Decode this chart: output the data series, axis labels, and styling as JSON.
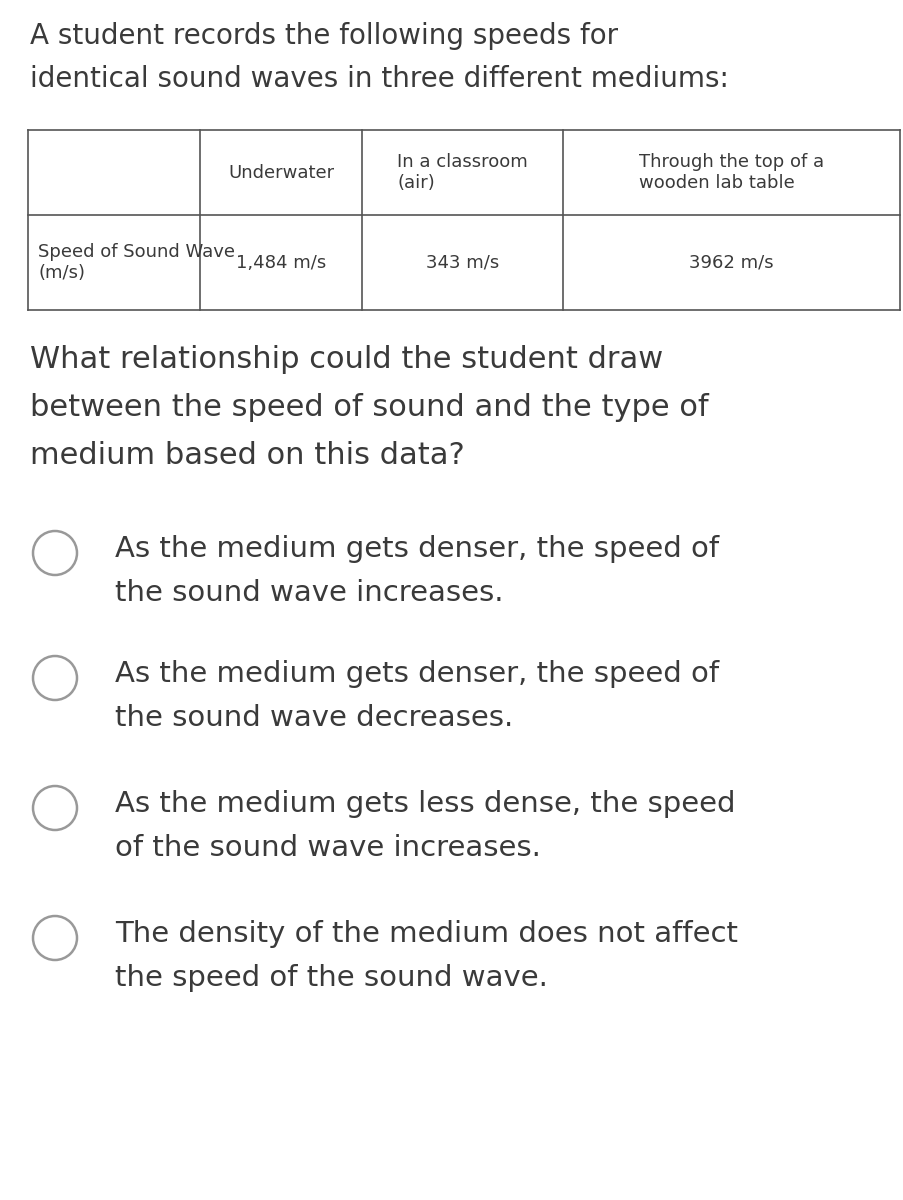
{
  "title_line1": "A student records the following speeds for",
  "title_line2": "identical sound waves in three different mediums:",
  "table_col0_header": "",
  "table_col1_header": "Underwater",
  "table_col2_header": "In a classroom\n(air)",
  "table_col3_header": "Through the top of a\nwooden lab table",
  "table_row_label_line1": "Speed of Sound Wave",
  "table_row_label_line2": "(m/s)",
  "table_val1": "1,484 m/s",
  "table_val2": "343 m/s",
  "table_val3": "3962 m/s",
  "question_line1": "What relationship could the student draw",
  "question_line2": "between the speed of sound and the type of",
  "question_line3": "medium based on this data?",
  "choice1_line1": "As the medium gets denser, the speed of",
  "choice1_line2": "the sound wave increases.",
  "choice2_line1": "As the medium gets denser, the speed of",
  "choice2_line2": "the sound wave decreases.",
  "choice3_line1": "As the medium gets less dense, the speed",
  "choice3_line2": "of the sound wave increases.",
  "choice4_line1": "The density of the medium does not affect",
  "choice4_line2": "the speed of the sound wave.",
  "bg_color": "#ffffff",
  "text_color": "#3a3a3a",
  "table_line_color": "#555555",
  "circle_color": "#999999",
  "font_size_title": 20,
  "font_size_table_header": 13,
  "font_size_table_data": 13,
  "font_size_question": 22,
  "font_size_choice": 21,
  "fig_width": 9.04,
  "fig_height": 12.0,
  "dpi": 100
}
